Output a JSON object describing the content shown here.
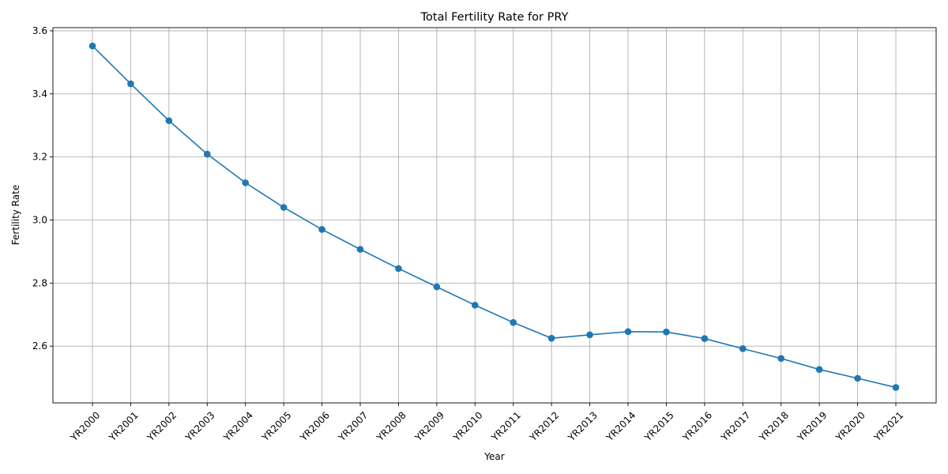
{
  "chart_data": {
    "type": "line",
    "title": "Total Fertility Rate for PRY",
    "xlabel": "Year",
    "ylabel": "Fertility Rate",
    "grid": true,
    "marker": "circle",
    "color": "#1f77b4",
    "ylim": [
      2.42,
      3.61
    ],
    "yticks": [
      2.6,
      2.8,
      3.0,
      3.2,
      3.4,
      3.6
    ],
    "ytick_labels": [
      "2.6",
      "2.8",
      "3.0",
      "3.2",
      "3.4",
      "3.6"
    ],
    "categories": [
      "YR2000",
      "YR2001",
      "YR2002",
      "YR2003",
      "YR2004",
      "YR2005",
      "YR2006",
      "YR2007",
      "YR2008",
      "YR2009",
      "YR2010",
      "YR2011",
      "YR2012",
      "YR2013",
      "YR2014",
      "YR2015",
      "YR2016",
      "YR2017",
      "YR2018",
      "YR2019",
      "YR2020",
      "YR2021"
    ],
    "values": [
      3.552,
      3.432,
      3.315,
      3.209,
      3.118,
      3.04,
      2.97,
      2.907,
      2.846,
      2.788,
      2.73,
      2.675,
      2.625,
      2.636,
      2.646,
      2.645,
      2.624,
      2.592,
      2.561,
      2.526,
      2.498,
      2.469
    ]
  }
}
